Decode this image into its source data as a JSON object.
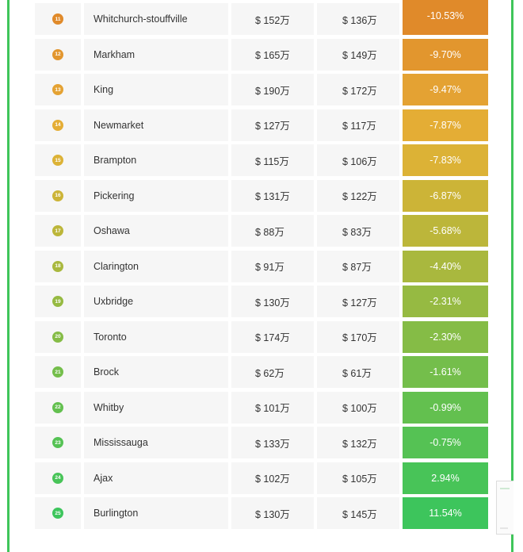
{
  "rows": [
    {
      "rank": "11",
      "city": "Whitchurch-stouffville",
      "price_before": "$ 152万",
      "price_after": "$ 136万",
      "change": "-10.53%",
      "badge_color": "#e08a2a",
      "change_color": "#e08a2a"
    },
    {
      "rank": "12",
      "city": "Markham",
      "price_before": "$ 165万",
      "price_after": "$ 149万",
      "change": "-9.70%",
      "badge_color": "#e2962e",
      "change_color": "#e2962e"
    },
    {
      "rank": "13",
      "city": "King",
      "price_before": "$ 190万",
      "price_after": "$ 172万",
      "change": "-9.47%",
      "badge_color": "#e4a233",
      "change_color": "#e4a233"
    },
    {
      "rank": "14",
      "city": "Newmarket",
      "price_before": "$ 127万",
      "price_after": "$ 117万",
      "change": "-7.87%",
      "badge_color": "#e4ad35",
      "change_color": "#e4ad35"
    },
    {
      "rank": "15",
      "city": "Brampton",
      "price_before": "$ 115万",
      "price_after": "$ 106万",
      "change": "-7.83%",
      "badge_color": "#dcb236",
      "change_color": "#dcb236"
    },
    {
      "rank": "16",
      "city": "Pickering",
      "price_before": "$ 131万",
      "price_after": "$ 122万",
      "change": "-6.87%",
      "badge_color": "#ccb437",
      "change_color": "#ccb437"
    },
    {
      "rank": "17",
      "city": "Oshawa",
      "price_before": "$ 88万",
      "price_after": "$ 83万",
      "change": "-5.68%",
      "badge_color": "#bcb63a",
      "change_color": "#bcb63a"
    },
    {
      "rank": "18",
      "city": "Clarington",
      "price_before": "$ 91万",
      "price_after": "$ 87万",
      "change": "-4.40%",
      "badge_color": "#a9b83e",
      "change_color": "#a9b83e"
    },
    {
      "rank": "19",
      "city": "Uxbridge",
      "price_before": "$ 130万",
      "price_after": "$ 127万",
      "change": "-2.31%",
      "badge_color": "#96ba42",
      "change_color": "#96ba42"
    },
    {
      "rank": "20",
      "city": "Toronto",
      "price_before": "$ 174万",
      "price_after": "$ 170万",
      "change": "-2.30%",
      "badge_color": "#85bc46",
      "change_color": "#85bc46"
    },
    {
      "rank": "21",
      "city": "Brock",
      "price_before": "$ 62万",
      "price_after": "$ 61万",
      "change": "-1.61%",
      "badge_color": "#74be4b",
      "change_color": "#74be4b"
    },
    {
      "rank": "22",
      "city": "Whitby",
      "price_before": "$ 101万",
      "price_after": "$ 100万",
      "change": "-0.99%",
      "badge_color": "#63c04f",
      "change_color": "#63c04f"
    },
    {
      "rank": "23",
      "city": "Mississauga",
      "price_before": "$ 133万",
      "price_after": "$ 132万",
      "change": "-0.75%",
      "badge_color": "#55c254",
      "change_color": "#55c254"
    },
    {
      "rank": "24",
      "city": "Ajax",
      "price_before": "$ 102万",
      "price_after": "$ 105万",
      "change": "2.94%",
      "badge_color": "#48c458",
      "change_color": "#48c458"
    },
    {
      "rank": "25",
      "city": "Burlington",
      "price_before": "$ 130万",
      "price_after": "$ 145万",
      "change": "11.54%",
      "badge_color": "#3dc55c",
      "change_color": "#3dc55c"
    }
  ],
  "colors": {
    "frame_border": "#3fc55a",
    "cell_background": "#f6f6f6"
  }
}
